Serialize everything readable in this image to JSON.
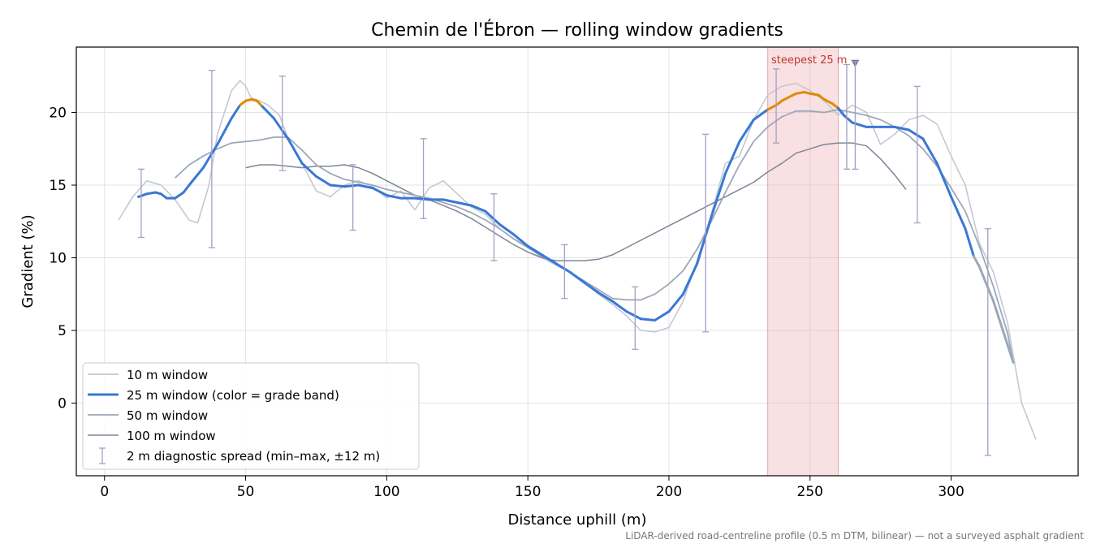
{
  "chart_data": {
    "type": "line",
    "title": "Chemin de l'Ébron — rolling window gradients",
    "xlabel": "Distance uphill (m)",
    "ylabel": "Gradient (%)",
    "xlim": [
      -10,
      345
    ],
    "ylim": [
      -5,
      24.5
    ],
    "xticks": [
      0,
      50,
      100,
      150,
      200,
      250,
      300
    ],
    "yticks": [
      0,
      5,
      10,
      15,
      20
    ],
    "grid": true,
    "legend_position": "lower-left",
    "footnote": "LiDAR-derived road-centreline profile (0.5 m DTM, bilinear) — not a surveyed asphalt gradient",
    "highlight": {
      "x_range": [
        235,
        260
      ],
      "label": "steepest 25 m",
      "marker_x": 266,
      "marker_y": 23.4
    },
    "series": [
      {
        "name": "10 m window",
        "color": "#c3c9d4",
        "x": [
          5,
          10,
          15,
          20,
          25,
          30,
          33,
          37,
          40,
          45,
          48,
          50,
          52,
          55,
          58,
          62,
          65,
          70,
          75,
          80,
          85,
          90,
          95,
          100,
          105,
          110,
          115,
          120,
          125,
          130,
          135,
          140,
          145,
          150,
          155,
          160,
          165,
          170,
          175,
          180,
          185,
          190,
          195,
          200,
          205,
          210,
          215,
          220,
          225,
          230,
          235,
          240,
          245,
          250,
          255,
          260,
          265,
          270,
          275,
          280,
          285,
          290,
          295,
          300,
          305,
          310,
          315,
          320,
          325,
          330
        ],
        "y": [
          12.6,
          14.2,
          15.3,
          15.0,
          14.0,
          12.6,
          12.4,
          15.0,
          18.5,
          21.5,
          22.2,
          21.8,
          21.0,
          20.8,
          20.5,
          19.8,
          18.2,
          16.5,
          14.6,
          14.2,
          15.0,
          15.3,
          14.9,
          14.1,
          14.6,
          13.3,
          14.8,
          15.3,
          14.4,
          13.5,
          13.0,
          12.0,
          11.3,
          10.8,
          10.0,
          9.5,
          9.0,
          8.3,
          7.5,
          6.8,
          6.0,
          5.0,
          4.9,
          5.2,
          7.0,
          9.8,
          13.0,
          16.5,
          17.0,
          19.5,
          21.2,
          21.8,
          22.0,
          21.5,
          20.8,
          19.8,
          20.5,
          20.0,
          17.8,
          18.5,
          19.5,
          19.8,
          19.2,
          17.0,
          15.0,
          11.0,
          9.0,
          5.5,
          0.0,
          -2.5
        ]
      },
      {
        "name": "25 m window (color = grade band)",
        "color": "#3a78d4",
        "steep_color": "#e08a00",
        "steep_threshold": 20,
        "x": [
          12,
          15,
          18,
          20,
          22,
          25,
          28,
          30,
          35,
          40,
          45,
          48,
          50,
          52,
          54,
          56,
          60,
          65,
          70,
          75,
          80,
          85,
          90,
          95,
          100,
          105,
          110,
          115,
          120,
          125,
          130,
          135,
          140,
          145,
          150,
          155,
          160,
          165,
          170,
          175,
          180,
          185,
          190,
          195,
          200,
          205,
          210,
          215,
          220,
          225,
          230,
          235,
          238,
          240,
          245,
          248,
          250,
          253,
          255,
          258,
          260,
          262,
          265,
          270,
          275,
          280,
          285,
          290,
          295,
          300,
          305,
          308,
          310,
          315,
          320,
          322
        ],
        "y": [
          14.2,
          14.4,
          14.5,
          14.4,
          14.1,
          14.1,
          14.5,
          15.0,
          16.2,
          17.8,
          19.6,
          20.5,
          20.8,
          20.9,
          20.8,
          20.4,
          19.6,
          18.2,
          16.5,
          15.6,
          15.0,
          14.9,
          15.0,
          14.8,
          14.3,
          14.1,
          14.1,
          14.0,
          14.0,
          13.8,
          13.6,
          13.2,
          12.3,
          11.6,
          10.8,
          10.2,
          9.6,
          9.0,
          8.3,
          7.6,
          7.0,
          6.3,
          5.8,
          5.7,
          6.3,
          7.5,
          9.6,
          12.8,
          15.8,
          18.0,
          19.5,
          20.2,
          20.5,
          20.8,
          21.3,
          21.4,
          21.3,
          21.2,
          20.9,
          20.6,
          20.3,
          19.8,
          19.3,
          19.0,
          19.0,
          19.0,
          18.8,
          18.2,
          16.5,
          14.2,
          12.0,
          10.1,
          9.4,
          7.0,
          4.0,
          2.8
        ]
      },
      {
        "name": "50 m window",
        "color": "#9ba8bb",
        "x": [
          25,
          30,
          35,
          40,
          45,
          50,
          55,
          60,
          65,
          70,
          75,
          80,
          85,
          90,
          95,
          100,
          105,
          110,
          115,
          120,
          125,
          130,
          135,
          140,
          145,
          150,
          155,
          160,
          165,
          170,
          175,
          180,
          185,
          190,
          195,
          200,
          205,
          210,
          215,
          220,
          225,
          230,
          235,
          240,
          245,
          250,
          255,
          260,
          265,
          270,
          275,
          280,
          285,
          290,
          295,
          300,
          305,
          310,
          315,
          320,
          322
        ],
        "y": [
          15.5,
          16.4,
          17.0,
          17.5,
          17.9,
          18.0,
          18.1,
          18.3,
          18.3,
          17.4,
          16.4,
          15.8,
          15.4,
          15.2,
          15.0,
          14.7,
          14.5,
          14.3,
          14.1,
          13.8,
          13.5,
          13.1,
          12.6,
          12.0,
          11.3,
          10.7,
          10.1,
          9.6,
          9.0,
          8.4,
          7.8,
          7.2,
          7.1,
          7.1,
          7.5,
          8.2,
          9.1,
          10.6,
          12.5,
          14.5,
          16.4,
          18.0,
          19.0,
          19.7,
          20.1,
          20.1,
          20.0,
          20.2,
          20.0,
          19.8,
          19.5,
          19.0,
          18.4,
          17.5,
          16.3,
          14.8,
          13.2,
          10.8,
          8.0,
          4.8,
          2.8
        ]
      },
      {
        "name": "100 m window",
        "color": "#7e8696",
        "x": [
          50,
          55,
          60,
          65,
          70,
          75,
          80,
          85,
          90,
          95,
          100,
          105,
          110,
          115,
          120,
          125,
          130,
          135,
          140,
          145,
          150,
          155,
          160,
          165,
          170,
          175,
          180,
          185,
          190,
          195,
          200,
          205,
          210,
          215,
          220,
          225,
          230,
          235,
          240,
          245,
          250,
          255,
          260,
          265,
          270,
          275,
          280,
          284
        ],
        "y": [
          16.2,
          16.4,
          16.4,
          16.3,
          16.2,
          16.3,
          16.3,
          16.4,
          16.2,
          15.8,
          15.3,
          14.8,
          14.3,
          14.0,
          13.6,
          13.2,
          12.7,
          12.1,
          11.5,
          10.9,
          10.4,
          10.0,
          9.8,
          9.8,
          9.8,
          9.9,
          10.2,
          10.7,
          11.2,
          11.7,
          12.2,
          12.7,
          13.2,
          13.7,
          14.2,
          14.7,
          15.2,
          15.9,
          16.5,
          17.2,
          17.5,
          17.8,
          17.9,
          17.9,
          17.7,
          16.8,
          15.7,
          14.7
        ]
      },
      {
        "name": "2 m diagnostic spread (min–max, ±12 m)",
        "color": "#a59fc2",
        "x": [
          13,
          38,
          63,
          88,
          113,
          138,
          163,
          188,
          213,
          238,
          263,
          266,
          288,
          313
        ],
        "lower": [
          11.4,
          10.7,
          16.0,
          11.9,
          12.7,
          9.8,
          7.2,
          3.7,
          4.9,
          17.9,
          16.1,
          16.1,
          12.4,
          -3.6
        ],
        "upper": [
          16.1,
          22.9,
          22.5,
          16.4,
          18.2,
          14.4,
          10.9,
          8.0,
          18.5,
          23.0,
          23.3,
          23.5,
          21.8,
          12.0
        ]
      }
    ]
  }
}
